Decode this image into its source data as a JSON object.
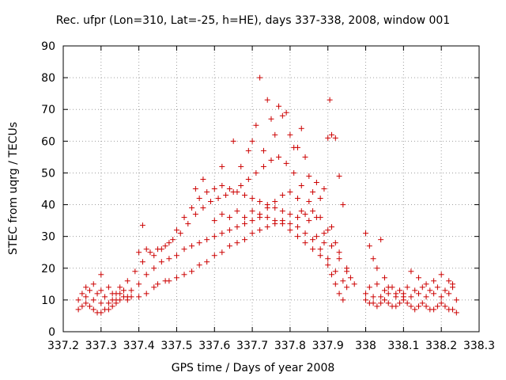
{
  "chart_data": {
    "type": "scatter",
    "title": "Rec. ufpr (Lon=310, Lat=-25, h=HE), days 337-338, 2008, window 001",
    "xlabel": "GPS time / Days of year 2008",
    "ylabel": "STEC from uqrg / TECUs",
    "xlim": [
      337.2,
      338.3
    ],
    "ylim": [
      0,
      90
    ],
    "xticks": [
      "337.2",
      "337.3",
      "337.4",
      "337.5",
      "337.6",
      "337.7",
      "337.8",
      "337.9",
      "338",
      "338.1",
      "338.2",
      "338.3"
    ],
    "yticks": [
      "0",
      "10",
      "20",
      "30",
      "40",
      "50",
      "60",
      "70",
      "80",
      "90"
    ],
    "grid": true,
    "marker": "+",
    "color": "#cc0000",
    "series": [
      {
        "values": [
          [
            337.24,
            7
          ],
          [
            337.25,
            8
          ],
          [
            337.26,
            9
          ],
          [
            337.27,
            8
          ],
          [
            337.28,
            7
          ],
          [
            337.29,
            6
          ],
          [
            337.3,
            6
          ],
          [
            337.31,
            7
          ],
          [
            337.32,
            7
          ],
          [
            337.33,
            8
          ],
          [
            337.34,
            9
          ],
          [
            337.35,
            10
          ],
          [
            337.37,
            10
          ],
          [
            337.38,
            11
          ],
          [
            337.4,
            11
          ],
          [
            337.42,
            12
          ],
          [
            337.44,
            14
          ],
          [
            337.45,
            15
          ],
          [
            337.47,
            16
          ],
          [
            337.48,
            16
          ],
          [
            337.5,
            17
          ],
          [
            337.52,
            18
          ],
          [
            337.54,
            19
          ],
          [
            337.56,
            21
          ],
          [
            337.58,
            22
          ],
          [
            337.6,
            24
          ],
          [
            337.62,
            25
          ],
          [
            337.64,
            27
          ],
          [
            337.66,
            28
          ],
          [
            337.68,
            29
          ],
          [
            337.7,
            31
          ],
          [
            337.72,
            32
          ],
          [
            337.74,
            33
          ],
          [
            337.76,
            34
          ],
          [
            337.78,
            34
          ],
          [
            337.8,
            32
          ],
          [
            337.82,
            30
          ],
          [
            337.84,
            28
          ],
          [
            337.86,
            26
          ],
          [
            337.88,
            24
          ],
          [
            337.9,
            21
          ],
          [
            337.91,
            18
          ],
          [
            337.92,
            15
          ],
          [
            337.93,
            12
          ],
          [
            337.94,
            10
          ],
          [
            337.24,
            10
          ],
          [
            337.26,
            11
          ],
          [
            337.28,
            10
          ],
          [
            337.3,
            9
          ],
          [
            337.32,
            9
          ],
          [
            337.34,
            10
          ],
          [
            337.36,
            11
          ],
          [
            337.38,
            13
          ],
          [
            337.4,
            15
          ],
          [
            337.42,
            18
          ],
          [
            337.44,
            20
          ],
          [
            337.46,
            22
          ],
          [
            337.48,
            23
          ],
          [
            337.5,
            24
          ],
          [
            337.52,
            26
          ],
          [
            337.54,
            27
          ],
          [
            337.56,
            28
          ],
          [
            337.58,
            29
          ],
          [
            337.6,
            30
          ],
          [
            337.62,
            31
          ],
          [
            337.64,
            32
          ],
          [
            337.66,
            33
          ],
          [
            337.68,
            34
          ],
          [
            337.7,
            35
          ],
          [
            337.72,
            36
          ],
          [
            337.74,
            36
          ],
          [
            337.76,
            35
          ],
          [
            337.78,
            35
          ],
          [
            337.8,
            34
          ],
          [
            337.82,
            33
          ],
          [
            337.84,
            31
          ],
          [
            337.86,
            29
          ],
          [
            337.88,
            26
          ],
          [
            337.9,
            23
          ],
          [
            337.92,
            19
          ],
          [
            337.94,
            16
          ],
          [
            337.95,
            14
          ],
          [
            337.25,
            12
          ],
          [
            337.27,
            13
          ],
          [
            337.29,
            12
          ],
          [
            337.31,
            11
          ],
          [
            337.33,
            12
          ],
          [
            337.35,
            14
          ],
          [
            337.37,
            16
          ],
          [
            337.39,
            19
          ],
          [
            337.41,
            22
          ],
          [
            337.43,
            25
          ],
          [
            337.45,
            26
          ],
          [
            337.47,
            27
          ],
          [
            337.49,
            29
          ],
          [
            337.51,
            31
          ],
          [
            337.53,
            34
          ],
          [
            337.55,
            37
          ],
          [
            337.57,
            39
          ],
          [
            337.59,
            41
          ],
          [
            337.61,
            42
          ],
          [
            337.63,
            43
          ],
          [
            337.65,
            44
          ],
          [
            337.67,
            46
          ],
          [
            337.69,
            48
          ],
          [
            337.71,
            50
          ],
          [
            337.73,
            52
          ],
          [
            337.75,
            54
          ],
          [
            337.77,
            55
          ],
          [
            337.79,
            53
          ],
          [
            337.81,
            50
          ],
          [
            337.83,
            46
          ],
          [
            337.85,
            41
          ],
          [
            337.87,
            36
          ],
          [
            337.89,
            31
          ],
          [
            337.91,
            27
          ],
          [
            337.93,
            23
          ],
          [
            337.95,
            19
          ],
          [
            337.4,
            25
          ],
          [
            337.42,
            26
          ],
          [
            337.44,
            24
          ],
          [
            337.46,
            26
          ],
          [
            337.48,
            28
          ],
          [
            337.5,
            32
          ],
          [
            337.52,
            36
          ],
          [
            337.54,
            39
          ],
          [
            337.56,
            42
          ],
          [
            337.58,
            44
          ],
          [
            337.6,
            45
          ],
          [
            337.62,
            46
          ],
          [
            337.64,
            45
          ],
          [
            337.66,
            44
          ],
          [
            337.68,
            43
          ],
          [
            337.7,
            42
          ],
          [
            337.72,
            41
          ],
          [
            337.74,
            40
          ],
          [
            337.76,
            39
          ],
          [
            337.78,
            38
          ],
          [
            337.8,
            37
          ],
          [
            337.82,
            36
          ],
          [
            337.84,
            37
          ],
          [
            337.86,
            38
          ],
          [
            337.88,
            36
          ],
          [
            337.9,
            32
          ],
          [
            337.92,
            28
          ],
          [
            337.41,
            33.5
          ],
          [
            337.55,
            45
          ],
          [
            337.57,
            48
          ],
          [
            337.62,
            52
          ],
          [
            337.65,
            60
          ],
          [
            337.67,
            52
          ],
          [
            337.69,
            57
          ],
          [
            337.7,
            60
          ],
          [
            337.71,
            65
          ],
          [
            337.72,
            80
          ],
          [
            337.73,
            57
          ],
          [
            337.74,
            73
          ],
          [
            337.75,
            67
          ],
          [
            337.76,
            62
          ],
          [
            337.77,
            71
          ],
          [
            337.78,
            68
          ],
          [
            337.79,
            69
          ],
          [
            337.8,
            62
          ],
          [
            337.81,
            58
          ],
          [
            337.82,
            58
          ],
          [
            337.83,
            64
          ],
          [
            337.84,
            55
          ],
          [
            337.85,
            49
          ],
          [
            337.86,
            44
          ],
          [
            337.87,
            47
          ],
          [
            337.88,
            42
          ],
          [
            337.89,
            45
          ],
          [
            337.9,
            61
          ],
          [
            337.905,
            73
          ],
          [
            337.91,
            62
          ],
          [
            337.92,
            61
          ],
          [
            337.93,
            49
          ],
          [
            337.94,
            40
          ],
          [
            337.83,
            38
          ],
          [
            337.85,
            35
          ],
          [
            337.87,
            30
          ],
          [
            337.89,
            28
          ],
          [
            337.91,
            33
          ],
          [
            337.93,
            25
          ],
          [
            337.95,
            20
          ],
          [
            337.96,
            17
          ],
          [
            337.97,
            15
          ],
          [
            338.0,
            31
          ],
          [
            338.01,
            27
          ],
          [
            338.02,
            23
          ],
          [
            338.03,
            20
          ],
          [
            338.04,
            29
          ],
          [
            338.05,
            17
          ],
          [
            338.06,
            14
          ],
          [
            338.08,
            12
          ],
          [
            338.1,
            11
          ],
          [
            338.12,
            19
          ],
          [
            338.14,
            17
          ],
          [
            338.16,
            15
          ],
          [
            338.18,
            16
          ],
          [
            338.2,
            18
          ],
          [
            338.22,
            16
          ],
          [
            338.23,
            14
          ],
          [
            338.0,
            10
          ],
          [
            338.01,
            9
          ],
          [
            338.02,
            9
          ],
          [
            338.03,
            8
          ],
          [
            338.04,
            9
          ],
          [
            338.05,
            10
          ],
          [
            338.06,
            9
          ],
          [
            338.07,
            8
          ],
          [
            338.08,
            8
          ],
          [
            338.09,
            9
          ],
          [
            338.1,
            10
          ],
          [
            338.11,
            9
          ],
          [
            338.12,
            8
          ],
          [
            338.13,
            7
          ],
          [
            338.14,
            8
          ],
          [
            338.15,
            9
          ],
          [
            338.16,
            8
          ],
          [
            338.17,
            7
          ],
          [
            338.18,
            7
          ],
          [
            338.19,
            8
          ],
          [
            338.2,
            9
          ],
          [
            338.21,
            8
          ],
          [
            338.22,
            7
          ],
          [
            338.23,
            7
          ],
          [
            338.24,
            6
          ],
          [
            338.0,
            12
          ],
          [
            338.02,
            11
          ],
          [
            338.04,
            11
          ],
          [
            338.06,
            12
          ],
          [
            338.08,
            11
          ],
          [
            338.1,
            12
          ],
          [
            338.12,
            11
          ],
          [
            338.14,
            12
          ],
          [
            338.16,
            11
          ],
          [
            338.18,
            12
          ],
          [
            338.2,
            11
          ],
          [
            338.22,
            12
          ],
          [
            338.24,
            10
          ],
          [
            338.01,
            14
          ],
          [
            338.03,
            15
          ],
          [
            338.05,
            13
          ],
          [
            338.07,
            14
          ],
          [
            338.09,
            13
          ],
          [
            338.11,
            14
          ],
          [
            338.13,
            13
          ],
          [
            338.15,
            14
          ],
          [
            338.17,
            13
          ],
          [
            338.19,
            14
          ],
          [
            338.21,
            13
          ],
          [
            338.23,
            15
          ],
          [
            337.26,
            14
          ],
          [
            337.28,
            15
          ],
          [
            337.3,
            13
          ],
          [
            337.32,
            14
          ],
          [
            337.34,
            12
          ],
          [
            337.36,
            13
          ],
          [
            337.3,
            18
          ],
          [
            337.33,
            10
          ],
          [
            337.35,
            12
          ],
          [
            337.37,
            11
          ],
          [
            337.6,
            35
          ],
          [
            337.62,
            37
          ],
          [
            337.64,
            36
          ],
          [
            337.66,
            38
          ],
          [
            337.68,
            36
          ],
          [
            337.7,
            38
          ],
          [
            337.72,
            37
          ],
          [
            337.74,
            39
          ],
          [
            337.76,
            41
          ],
          [
            337.78,
            43
          ],
          [
            337.8,
            44
          ],
          [
            337.82,
            42
          ]
        ]
      }
    ]
  }
}
